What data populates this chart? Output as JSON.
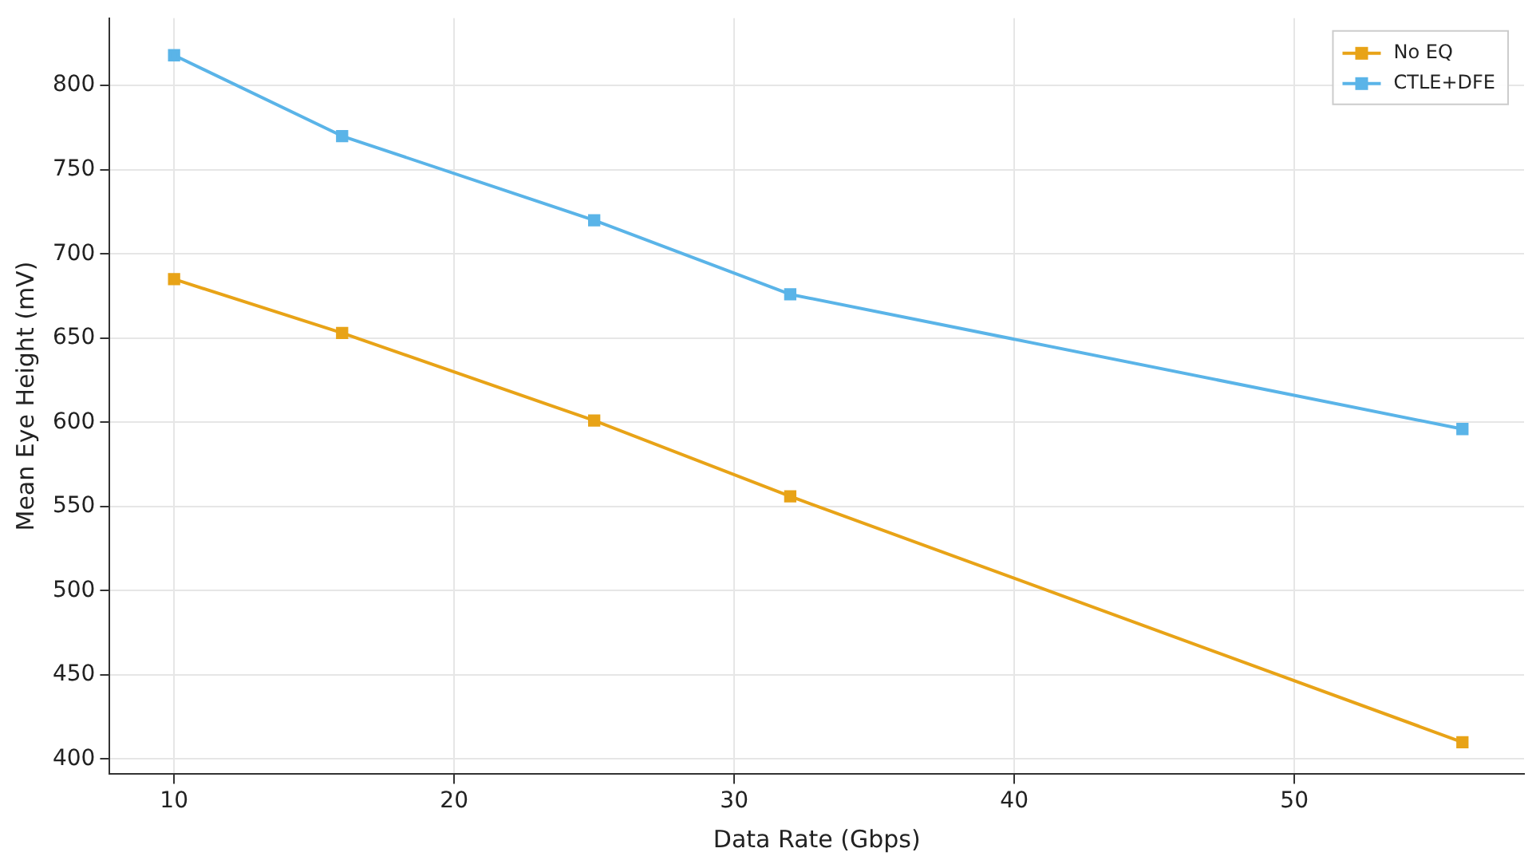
{
  "chart_data": {
    "type": "line",
    "xlabel": "Data Rate (Gbps)",
    "ylabel": "Mean Eye Height (mV)",
    "x": [
      10,
      16,
      25,
      32,
      56
    ],
    "series": [
      {
        "name": "No EQ",
        "color": "#e8a317",
        "values": [
          685,
          653,
          601,
          556,
          410
        ]
      },
      {
        "name": "CTLE+DFE",
        "color": "#5ab4e8",
        "values": [
          818,
          770,
          720,
          676,
          596
        ]
      }
    ],
    "xlim": [
      7.7,
      58.2
    ],
    "xticks": [
      10,
      20,
      30,
      40,
      50
    ],
    "ylim": [
      391,
      840
    ],
    "yticks": [
      400,
      450,
      500,
      550,
      600,
      650,
      700,
      750,
      800
    ],
    "grid": true,
    "legend": "top right",
    "marker": "square",
    "line_style": "solid"
  }
}
